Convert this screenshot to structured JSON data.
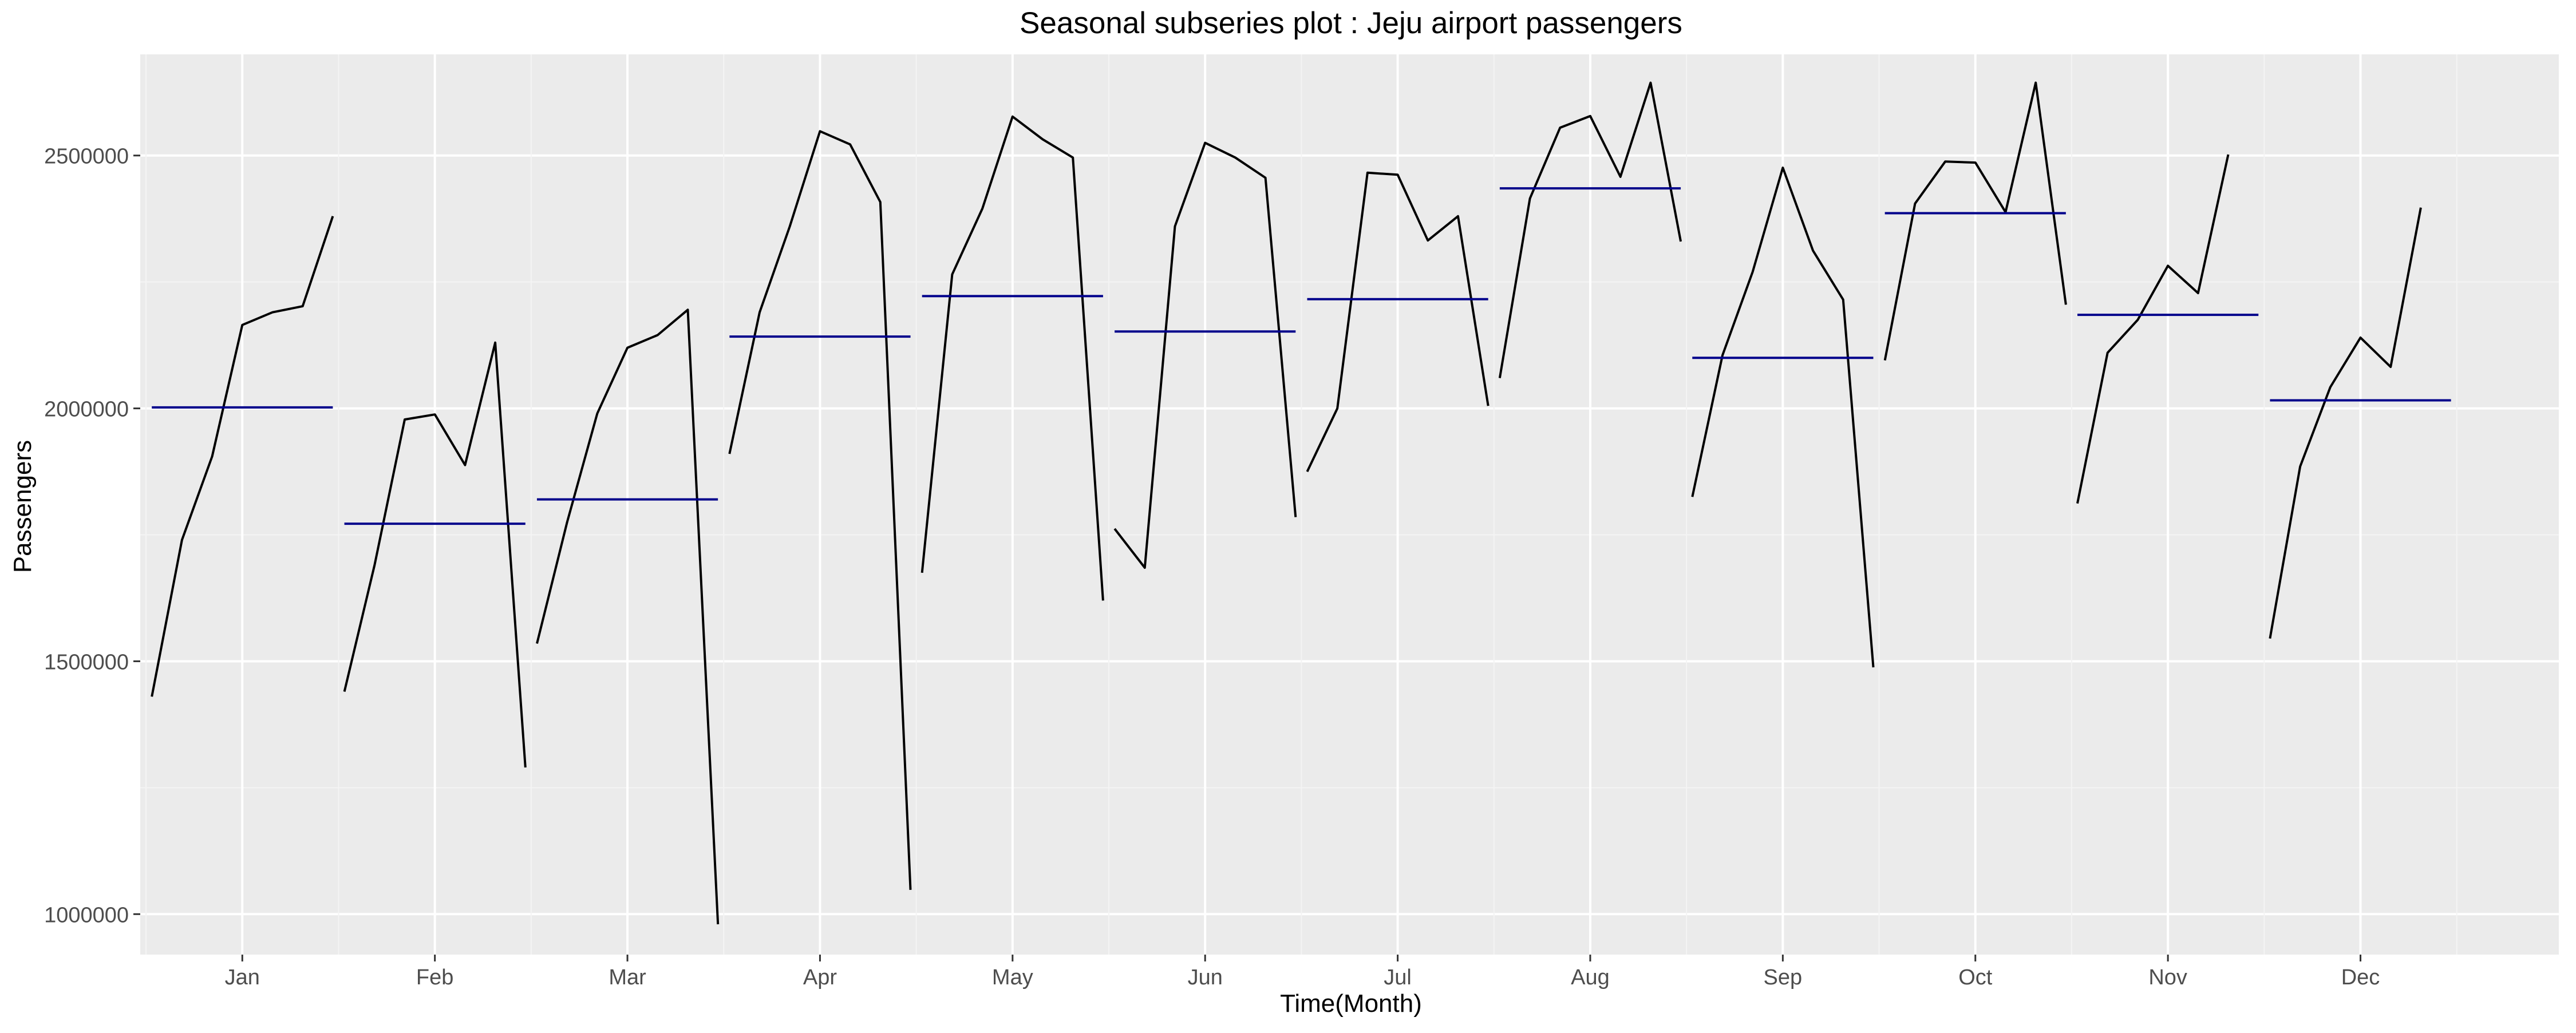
{
  "chart_data": {
    "type": "line",
    "title": "Seasonal subseries plot : Jeju airport passengers",
    "xlabel": "Time(Month)",
    "ylabel": "Passengers",
    "ylim": [
      920000,
      2700000
    ],
    "yticks": [
      1000000,
      1500000,
      2000000,
      2500000
    ],
    "ytick_labels": [
      "1000000",
      "1500000",
      "2000000",
      "2500000"
    ],
    "xlim": [
      0.47,
      13.03
    ],
    "grid": true,
    "legend": "none",
    "colors": {
      "panel": "#ebebeb",
      "grid_major": "#ffffff",
      "grid_minor": "#f4f4f4",
      "series_line": "#000000",
      "mean_line": "#00008b",
      "text": "#4d4d4d",
      "title": "#000000"
    },
    "months": [
      {
        "label": "Jan",
        "values": [
          1430000,
          1740000,
          1905000,
          2165000,
          2190000,
          2202000,
          2380000
        ],
        "mean": 2002000
      },
      {
        "label": "Feb",
        "values": [
          1440000,
          1690000,
          1978000,
          1988000,
          1888000,
          2130000,
          1290000
        ],
        "mean": 1772000
      },
      {
        "label": "Mar",
        "values": [
          1535000,
          1775000,
          1990000,
          2120000,
          2145000,
          2195000,
          980000
        ],
        "mean": 1820000
      },
      {
        "label": "Apr",
        "values": [
          1910000,
          2190000,
          2360000,
          2548000,
          2522000,
          2408000,
          1048000
        ],
        "mean": 2142000
      },
      {
        "label": "May",
        "values": [
          1675000,
          2265000,
          2395000,
          2577000,
          2532000,
          2496000,
          1620000
        ],
        "mean": 2222000
      },
      {
        "label": "Jun",
        "values": [
          1762000,
          1685000,
          2360000,
          2525000,
          2496000,
          2456000,
          1785000
        ],
        "mean": 2152000
      },
      {
        "label": "Jul",
        "values": [
          1875000,
          2000000,
          2466000,
          2462000,
          2332000,
          2380000,
          2005000
        ],
        "mean": 2216000
      },
      {
        "label": "Aug",
        "values": [
          2060000,
          2415000,
          2555000,
          2578000,
          2458000,
          2644000,
          2330000
        ],
        "mean": 2435000
      },
      {
        "label": "Sep",
        "values": [
          1825000,
          2105000,
          2270000,
          2476000,
          2312000,
          2215000,
          1488000
        ],
        "mean": 2100000
      },
      {
        "label": "Oct",
        "values": [
          2095000,
          2405000,
          2488000,
          2486000,
          2388000,
          2644000,
          2205000
        ],
        "mean": 2386000
      },
      {
        "label": "Nov",
        "values": [
          1812000,
          2110000,
          2175000,
          2282000,
          2228000,
          2502000
        ],
        "mean": 2185000
      },
      {
        "label": "Dec",
        "values": [
          1545000,
          1885000,
          2042000,
          2140000,
          2082000,
          2397000
        ],
        "mean": 2016000
      }
    ]
  }
}
